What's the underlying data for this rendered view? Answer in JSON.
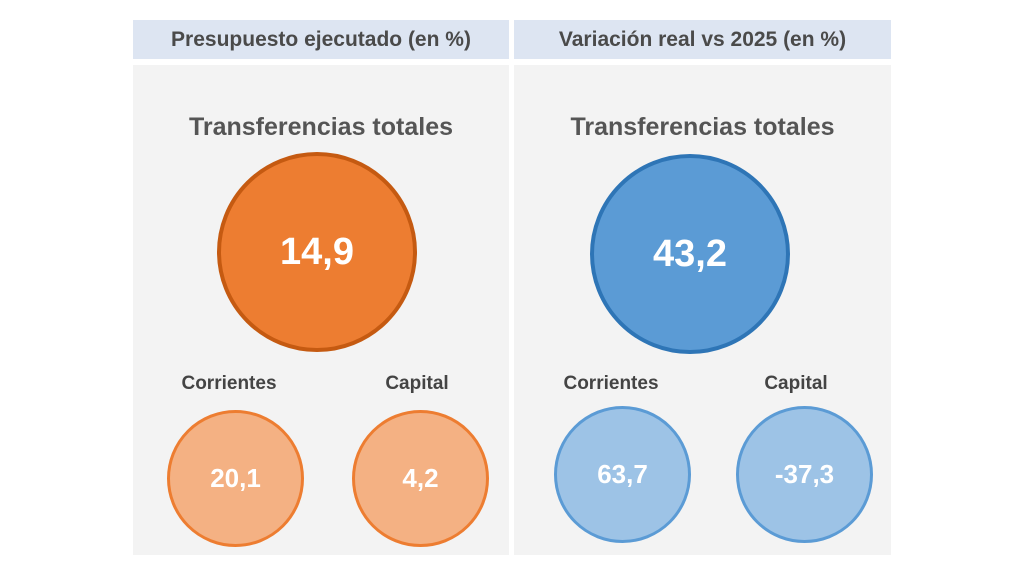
{
  "left": {
    "header": "Presupuesto ejecutado (en %)",
    "title": "Transferencias totales",
    "total": "14,9",
    "corrientes_label": "Corrientes",
    "corrientes_value": "20,1",
    "capital_label": "Capital",
    "capital_value": "4,2",
    "colors": {
      "main": "#ed7d31",
      "light": "#f4b183"
    }
  },
  "right": {
    "header": "Variación real vs 2025 (en %)",
    "title": "Transferencias totales",
    "total": "43,2",
    "corrientes_label": "Corrientes",
    "corrientes_value": "63,7",
    "capital_label": "Capital",
    "capital_value": "-37,3",
    "colors": {
      "main": "#5b9bd5",
      "light": "#9dc3e6"
    }
  }
}
